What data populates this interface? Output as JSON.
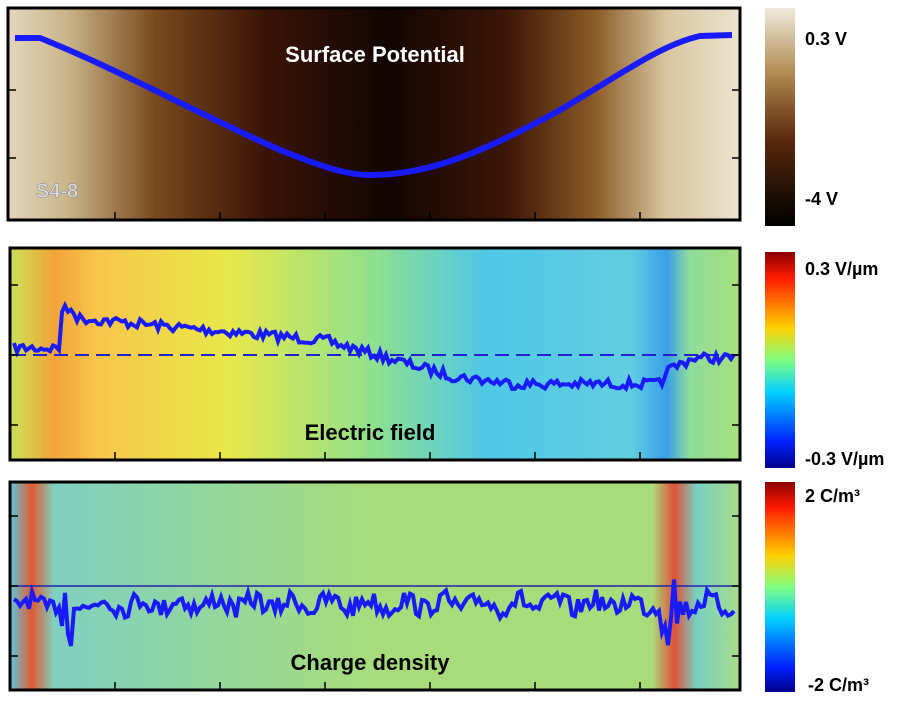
{
  "panels": [
    {
      "title": "Surface Potential",
      "sample": "S4-8",
      "colorbar": {
        "max": "0.3 V",
        "min": "-4 V"
      }
    },
    {
      "title": "Electric field",
      "colorbar": {
        "max": "0.3 V/µm",
        "min": "-0.3 V/µm"
      }
    },
    {
      "title": "Charge density",
      "colorbar": {
        "max": "2 C/m³",
        "min": "-2 C/m³"
      }
    }
  ]
}
